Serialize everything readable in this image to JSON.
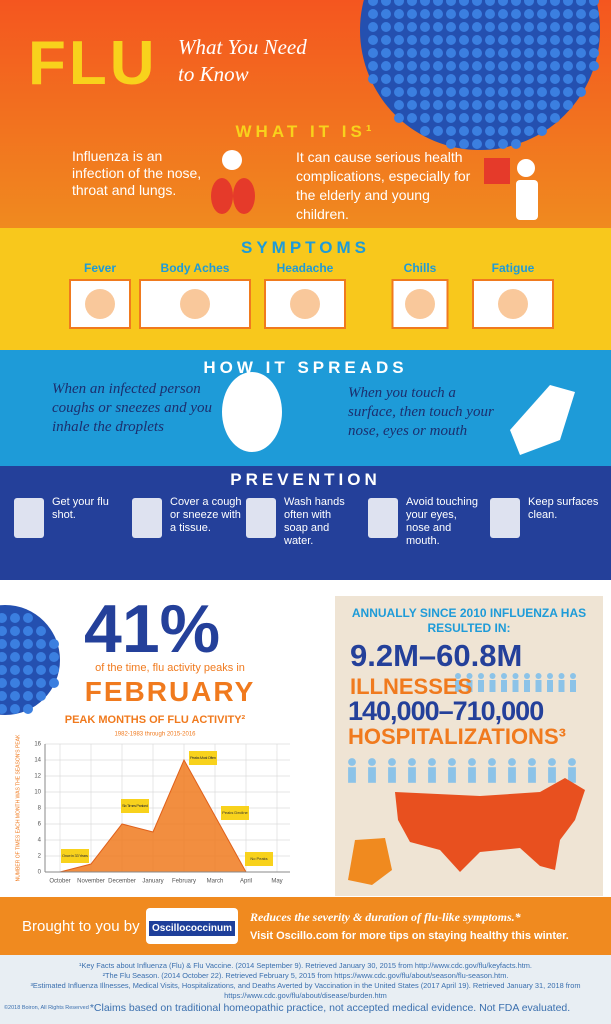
{
  "header": {
    "title": "FLU",
    "subtitle": "What You Need to Know"
  },
  "what_it_is": {
    "heading": "WHAT IT IS¹",
    "left": "Influenza is an infection of the nose, throat and lungs.",
    "right": "It can cause serious health complications, especially for the elderly and young children."
  },
  "symptoms": {
    "heading": "SYMPTOMS",
    "items": [
      "Fever",
      "Body Aches",
      "Headache",
      "Chills",
      "Fatigue"
    ]
  },
  "spreads": {
    "heading": "HOW IT SPREADS",
    "left": "When an infected person coughs or sneezes and you inhale the droplets",
    "right": "When you touch a surface, then touch your nose, eyes or mouth"
  },
  "prevention": {
    "heading": "PREVENTION",
    "items": [
      "Get your flu shot.",
      "Cover a cough or sneeze with a tissue.",
      "Wash hands often with soap and water.",
      "Avoid touching your eyes, nose and mouth.",
      "Keep surfaces clean."
    ]
  },
  "stat": {
    "percent": "41%",
    "text": "of the time, flu activity peaks in",
    "month": "FEBRUARY"
  },
  "chart_data": {
    "type": "area",
    "title": "PEAK MONTHS OF FLU ACTIVITY²",
    "subtitle": "1982-1983 through 2015-2016",
    "y_label": "NUMBER OF TIMES EACH MONTH WAS THE SEASON'S PEAK",
    "categories": [
      "October",
      "November",
      "December",
      "January",
      "February",
      "March",
      "April",
      "May"
    ],
    "values": [
      0,
      1,
      6,
      5,
      14,
      7,
      0,
      null
    ],
    "color": "#f07a1e",
    "ylim": [
      0,
      16
    ],
    "yticks": [
      0,
      2,
      4,
      6,
      8,
      10,
      12,
      14,
      16
    ],
    "grid": true,
    "annotations": [
      "Once in 33 Years",
      "Six Times Peaked",
      "Peaks Most Often",
      "Peaks Decline",
      "No Peaks"
    ]
  },
  "annual": {
    "heading": "ANNUALLY SINCE 2010 INFLUENZA HAS RESULTED IN:",
    "illnesses_range": "9.2M–60.8M",
    "illnesses_label": "ILLNESSES",
    "hosp_range": "140,000–710,000",
    "hosp_label": "HOSPITALIZATIONS³"
  },
  "footer": {
    "brought": "Brought to you by",
    "brand": "Oscillococcinum",
    "tagline": "Reduces the severity & duration of flu-like symptoms.*",
    "visit": "Visit Oscillo.com for more tips on staying healthy this winter.",
    "footnotes": [
      "¹Key Facts about Influenza (Flu) & Flu Vaccine. (2014 September 9). Retrieved January 30, 2015 from http://www.cdc.gov/flu/keyfacts.htm.",
      "²The Flu Season. (2014 October 22). Retrieved February 5, 2015 from https://www.cdc.gov/flu/about/season/flu-season.htm.",
      "³Estimated Influenza Illnesses, Medical Visits, Hospitalizations, and Deaths Averted by Vaccination in the United States (2017 April 19). Retrieved January 31, 2018 from https://www.cdc.gov/flu/about/disease/burden.htm"
    ],
    "copyright": "©2018 Boiron, All Rights Reserved",
    "disclaimer": "*Claims based on traditional homeopathic practice, not accepted medical evidence. Not FDA evaluated."
  }
}
